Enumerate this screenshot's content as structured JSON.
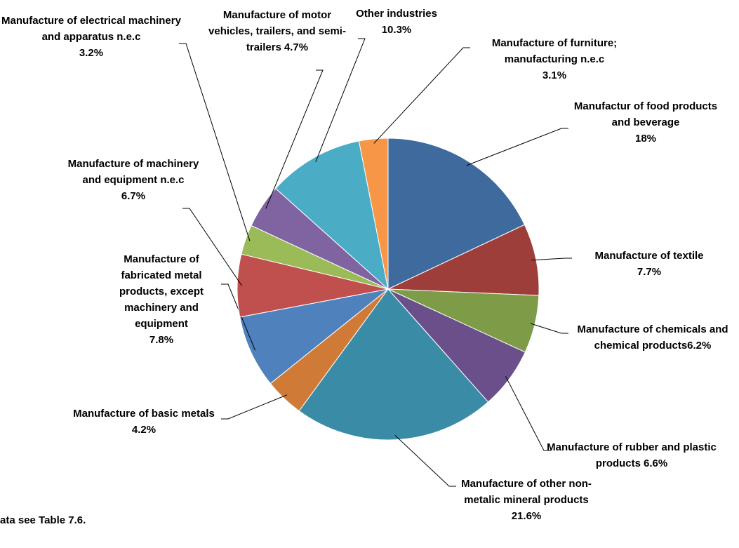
{
  "chart_data": {
    "type": "pie",
    "categories": [
      "Manufactur of food products and beverage",
      "Manufacture of textile",
      "Manufacture of chemicals and chemical products",
      "Manufacture of rubber and plastic products",
      "Manufacture of other non-metalic mineral products",
      "Manufacture of basic metals",
      "Manufacture of fabricated metal products, except machinery and equipment",
      "Manufacture of machinery and equipment n.e.c",
      "Manufacture of electrical machinery and apparatus n.e.c",
      "Manufacture of motor vehicles, trailers, and semi-trailers",
      "Other industries",
      "Manufacture of furniture; manufacturing n.e.c"
    ],
    "values": [
      18,
      7.7,
      6.2,
      6.6,
      21.6,
      4.2,
      7.8,
      6.7,
      3.2,
      4.7,
      10.3,
      3.1
    ],
    "value_labels": [
      "18%",
      "7.7%",
      "6.2%",
      "6.6%",
      "21.6%",
      "4.2%",
      "7.8%",
      "6.7%",
      "3.2%",
      "4.7%",
      "10.3%",
      "3.1%"
    ],
    "colors": [
      "#3f6a9e",
      "#9e3e3b",
      "#7e9c48",
      "#6a4f8a",
      "#3a8ba6",
      "#d07a37",
      "#4f81bd",
      "#c0504d",
      "#9bbb59",
      "#8064a2",
      "#4bacc6",
      "#f79646"
    ],
    "note": "ata see Table 7.6."
  }
}
